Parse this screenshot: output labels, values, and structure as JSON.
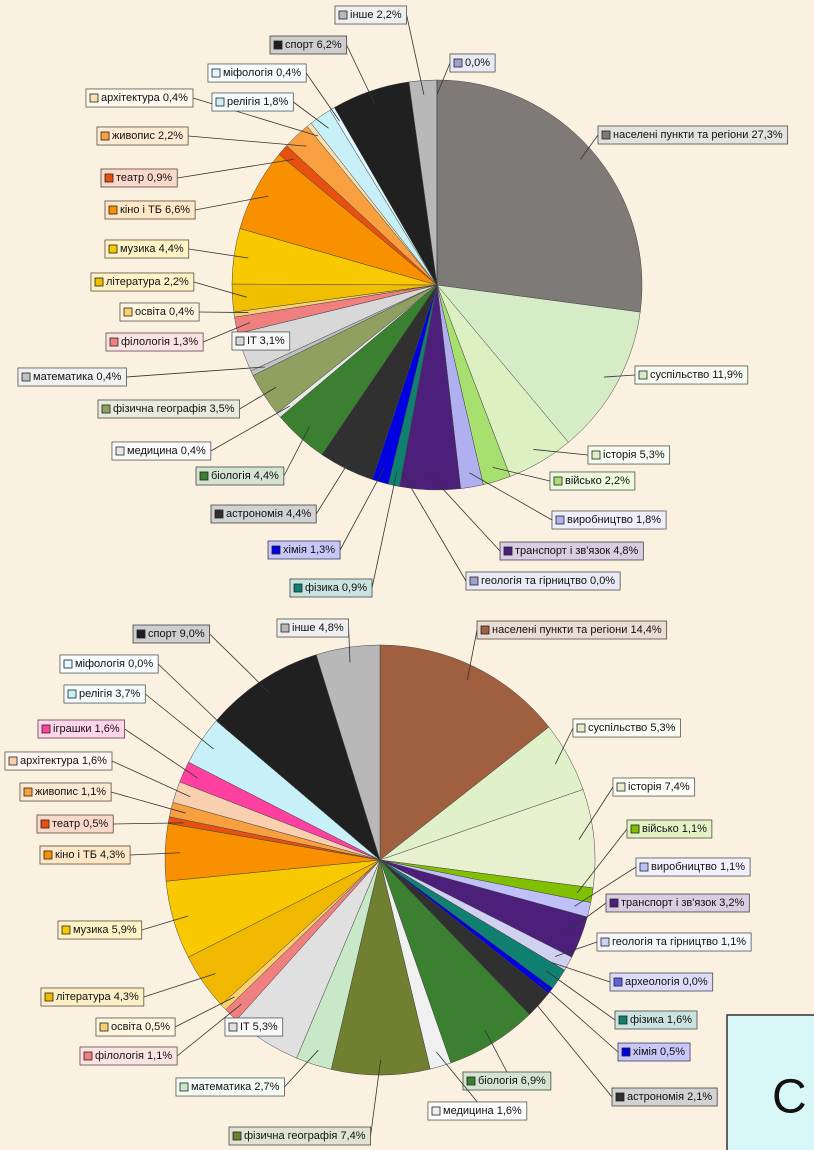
{
  "chart_data": [
    {
      "type": "pie",
      "categories": [
        "населені пункти та регіони",
        "суспільство",
        "історія",
        "військо",
        "виробництво",
        "транспорт і зв'язок",
        "геологія та гірництво",
        "фізика",
        "хімія",
        "астрономія",
        "біологія",
        "медицина",
        "фізична географія",
        "математика",
        "IT",
        "філологія",
        "освіта",
        "література",
        "музика",
        "кіно і ТБ",
        "театр",
        "живопис",
        "архітектура",
        "релігія",
        "міфологія",
        "спорт",
        "інше",
        null
      ],
      "values": [
        27.3,
        11.9,
        5.3,
        2.2,
        1.8,
        4.8,
        0.0,
        0.9,
        1.3,
        4.4,
        4.4,
        0.4,
        3.5,
        0.4,
        3.1,
        1.3,
        0.4,
        2.2,
        4.4,
        6.6,
        0.9,
        2.2,
        0.4,
        1.8,
        0.4,
        6.2,
        2.2,
        0.0
      ],
      "value_labels": [
        "27,3%",
        "11,9%",
        "5,3%",
        "2,2%",
        "1,8%",
        "4,8%",
        "0,0%",
        "0,9%",
        "1,3%",
        "4,4%",
        "4,4%",
        "0,4%",
        "3,5%",
        "0,4%",
        "3,1%",
        "1,3%",
        "0,4%",
        "2,2%",
        "4,4%",
        "6,6%",
        "0,9%",
        "2,2%",
        "0,4%",
        "1,8%",
        "0,4%",
        "6,2%",
        "2,2%",
        "0,0%"
      ],
      "colors": [
        "#7d7a78",
        "#d6ecc6",
        "#dcf0c2",
        "#a8e070",
        "#b0b0f0",
        "#4b1f7a",
        "#a0a0d0",
        "#108070",
        "#0000e0",
        "#303030",
        "#3a8030",
        "#e8e8e8",
        "#90a060",
        "#c0c0c0",
        "#d8d8d8",
        "#f08080",
        "#f8d070",
        "#f0c000",
        "#f8c800",
        "#f89000",
        "#e85010",
        "#f8a040",
        "#f8e0b0",
        "#c8f0f8",
        "#e0f8ff",
        "#202020",
        "#b8b8b8",
        "#a0a0d0"
      ]
    },
    {
      "type": "pie",
      "categories": [
        "населені пункти та регіони",
        "суспільство",
        "історія",
        "військо",
        "виробництво",
        "транспорт і зв'язок",
        "геологія та гірництво",
        "археологія",
        "фізика",
        "хімія",
        "астрономія",
        "біологія",
        "медицина",
        "фізична географія",
        "математика",
        "IT",
        "філологія",
        "освіта",
        "література",
        "музика",
        "кіно і ТБ",
        "театр",
        "живопис",
        "архітектура",
        "іграшки",
        "релігія",
        "міфологія",
        "спорт",
        "інше"
      ],
      "values": [
        14.4,
        5.3,
        7.4,
        1.1,
        1.1,
        3.2,
        1.1,
        0.0,
        1.6,
        0.5,
        2.1,
        6.9,
        1.6,
        7.4,
        2.7,
        5.3,
        1.1,
        0.5,
        4.3,
        5.9,
        4.3,
        0.5,
        1.1,
        1.6,
        1.6,
        3.7,
        0.0,
        9.0,
        4.8
      ],
      "value_labels": [
        "14,4%",
        "5,3%",
        "7,4%",
        "1,1%",
        "1,1%",
        "3,2%",
        "1,1%",
        "0,0%",
        "1,6%",
        "0,5%",
        "2,1%",
        "6,9%",
        "1,6%",
        "7,4%",
        "2,7%",
        "5,3%",
        "1,1%",
        "0,5%",
        "4,3%",
        "5,9%",
        "4,3%",
        "0,5%",
        "1,1%",
        "1,6%",
        "1,6%",
        "3,7%",
        "0,0%",
        "9,0%",
        "4,8%"
      ],
      "colors": [
        "#a06040",
        "#e0f0c8",
        "#e8f0d0",
        "#80c000",
        "#c0c0f8",
        "#4b1f7a",
        "#d0d0f0",
        "#6060e0",
        "#108070",
        "#0000e0",
        "#303030",
        "#3a8030",
        "#f0f0f0",
        "#708030",
        "#c8e8c8",
        "#e0e0e0",
        "#f08080",
        "#f8d070",
        "#f0b800",
        "#f8c800",
        "#f89000",
        "#e85010",
        "#f8a040",
        "#f8d0b0",
        "#ff40a0",
        "#c8f0f8",
        "#e0f8ff",
        "#202020",
        "#b8b8b8"
      ]
    }
  ],
  "caption": "C"
}
